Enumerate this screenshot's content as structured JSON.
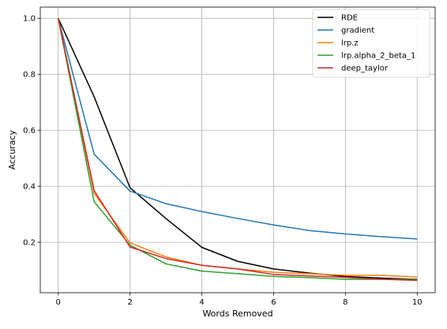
{
  "chart_data": {
    "type": "line",
    "xlabel": "Words Removed",
    "ylabel": "Accuracy",
    "xlim": [
      -0.5,
      10.5
    ],
    "ylim": [
      0.02,
      1.04
    ],
    "xticks": [
      0,
      2,
      4,
      6,
      8,
      10
    ],
    "yticks": [
      0.2,
      0.4,
      0.6,
      0.8,
      1.0
    ],
    "ytick_labels": [
      "0.2",
      "0.4",
      "0.6",
      "0.8",
      "1.0"
    ],
    "grid": true,
    "legend_position": "top-right",
    "x": [
      0,
      1,
      2,
      3,
      4,
      5,
      6,
      7,
      8,
      9,
      10
    ],
    "series": [
      {
        "name": "RDE",
        "color": "#000000",
        "values": [
          1.0,
          0.72,
          0.395,
          0.285,
          0.182,
          0.132,
          0.105,
          0.09,
          0.078,
          0.072,
          0.068
        ]
      },
      {
        "name": "gradient",
        "color": "#1f77b4",
        "values": [
          1.0,
          0.515,
          0.383,
          0.338,
          0.31,
          0.285,
          0.262,
          0.242,
          0.23,
          0.22,
          0.212
        ]
      },
      {
        "name": "lrp.z",
        "color": "#ff7f0e",
        "values": [
          1.0,
          0.375,
          0.198,
          0.148,
          0.118,
          0.105,
          0.093,
          0.088,
          0.082,
          0.082,
          0.076
        ]
      },
      {
        "name": "lrp.alpha_2_beta_1",
        "color": "#2ca02c",
        "values": [
          1.0,
          0.345,
          0.19,
          0.123,
          0.097,
          0.088,
          0.078,
          0.074,
          0.068,
          0.068,
          0.068
        ]
      },
      {
        "name": "deep_taylor",
        "color": "#d62728",
        "values": [
          1.0,
          0.385,
          0.183,
          0.142,
          0.118,
          0.105,
          0.085,
          0.08,
          0.075,
          0.068,
          0.064
        ]
      }
    ]
  }
}
